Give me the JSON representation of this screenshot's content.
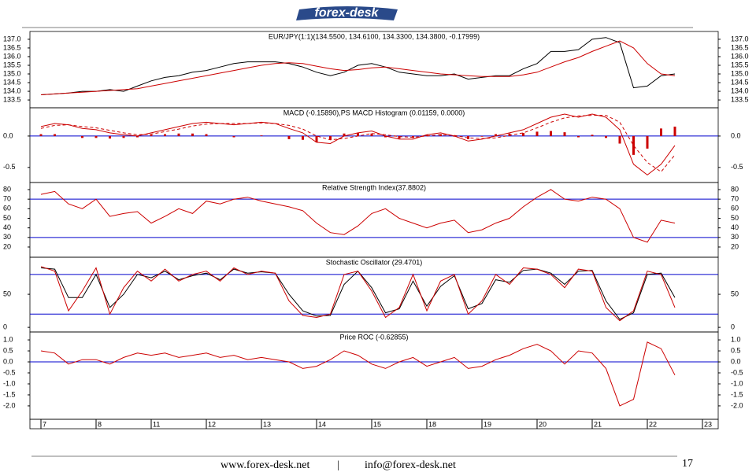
{
  "header": {
    "logo": "forex-desk"
  },
  "x_axis": {
    "categories": [
      "7",
      "8",
      "11",
      "12",
      "13",
      "14",
      "15",
      "18",
      "19",
      "20",
      "21",
      "22",
      "23"
    ]
  },
  "chart_data": [
    {
      "type": "line",
      "title": "EUR/JPY(1:1)(134.5500, 134.6100, 134.3300, 134.3800, -0.17999)",
      "ylim": [
        133.05,
        137.45
      ],
      "yticks": [
        133.5,
        {
          "value": 134,
          "label": "134.0"
        },
        134.5,
        {
          "value": 135,
          "label": "135.0"
        },
        135.5,
        {
          "value": 136,
          "label": "136.0"
        },
        136.5,
        {
          "value": 137,
          "label": "137.0"
        }
      ],
      "series": [
        {
          "color": "#000000",
          "values": [
            133.8,
            133.85,
            133.9,
            134.0,
            134.0,
            134.1,
            134.0,
            134.3,
            134.6,
            134.8,
            134.9,
            135.1,
            135.2,
            135.4,
            135.6,
            135.7,
            135.7,
            135.7,
            135.6,
            135.4,
            135.1,
            134.9,
            135.1,
            135.5,
            135.6,
            135.4,
            135.1,
            135.0,
            134.9,
            134.9,
            135.0,
            134.7,
            134.8,
            134.9,
            134.9,
            135.3,
            135.6,
            136.3,
            136.3,
            136.4,
            137.0,
            137.1,
            136.8,
            134.2,
            134.3,
            134.9,
            135.0
          ]
        },
        {
          "color": "#cc0000",
          "values": [
            133.8,
            133.85,
            133.9,
            133.95,
            134.0,
            134.05,
            134.1,
            134.15,
            134.3,
            134.45,
            134.6,
            134.75,
            134.9,
            135.05,
            135.2,
            135.35,
            135.5,
            135.6,
            135.65,
            135.6,
            135.45,
            135.3,
            135.2,
            135.25,
            135.35,
            135.4,
            135.3,
            135.2,
            135.1,
            135.0,
            134.95,
            134.9,
            134.85,
            134.85,
            134.85,
            134.95,
            135.1,
            135.4,
            135.7,
            135.95,
            136.3,
            136.6,
            136.9,
            136.5,
            135.6,
            135.0,
            134.9
          ]
        }
      ]
    },
    {
      "type": "line",
      "title": "MACD (-0.15890),PS MACD Histogram (0.01159, 0.0000)",
      "ylim": [
        -0.74,
        0.45
      ],
      "yticks": [
        -0.5,
        {
          "value": 0,
          "label": "0.0"
        }
      ],
      "hlines": [
        0
      ],
      "hline_color": "#0000cc",
      "series": [
        {
          "type": "bar",
          "color": "#cc0000",
          "values": [
            0.03,
            0.03,
            0.0,
            -0.03,
            -0.03,
            -0.04,
            -0.03,
            -0.02,
            0.02,
            0.03,
            0.04,
            0.04,
            0.03,
            0.0,
            -0.02,
            0.0,
            0.01,
            0.0,
            -0.05,
            -0.06,
            -0.1,
            -0.06,
            0.04,
            0.05,
            0.04,
            -0.02,
            -0.04,
            -0.03,
            0.02,
            0.03,
            -0.01,
            -0.05,
            -0.01,
            0.03,
            0.04,
            0.05,
            0.07,
            0.08,
            0.06,
            -0.02,
            0.02,
            -0.03,
            -0.12,
            -0.3,
            -0.2,
            0.12,
            0.15
          ]
        },
        {
          "color": "#cc0000",
          "values": [
            0.15,
            0.2,
            0.18,
            0.12,
            0.1,
            0.05,
            0.02,
            0.0,
            0.05,
            0.1,
            0.15,
            0.2,
            0.22,
            0.2,
            0.18,
            0.2,
            0.22,
            0.2,
            0.12,
            0.05,
            -0.1,
            -0.12,
            0.0,
            0.05,
            0.08,
            0.0,
            -0.05,
            -0.05,
            0.02,
            0.05,
            0.0,
            -0.08,
            -0.05,
            0.0,
            0.05,
            0.1,
            0.2,
            0.3,
            0.35,
            0.3,
            0.35,
            0.3,
            0.1,
            -0.45,
            -0.62,
            -0.45,
            -0.15
          ]
        },
        {
          "color": "#cc0000",
          "style": "dashed",
          "values": [
            0.12,
            0.17,
            0.18,
            0.15,
            0.13,
            0.09,
            0.05,
            0.02,
            0.03,
            0.07,
            0.11,
            0.16,
            0.19,
            0.2,
            0.2,
            0.2,
            0.21,
            0.2,
            0.17,
            0.11,
            0.0,
            -0.06,
            -0.04,
            0.0,
            0.04,
            0.02,
            -0.01,
            -0.02,
            0.0,
            0.02,
            0.01,
            -0.03,
            -0.04,
            -0.03,
            0.01,
            0.05,
            0.13,
            0.22,
            0.29,
            0.32,
            0.33,
            0.33,
            0.22,
            -0.15,
            -0.42,
            -0.57,
            -0.3
          ]
        }
      ]
    },
    {
      "type": "line",
      "title": "Relative Strength Index(37.8802)",
      "ylim": [
        9.3,
        87.4
      ],
      "yticks": [
        20,
        30,
        40,
        50,
        60,
        70,
        80
      ],
      "hlines": [
        70,
        30
      ],
      "hline_color": "#0000cc",
      "series": [
        {
          "color": "#cc0000",
          "values": [
            75,
            78,
            65,
            60,
            70,
            52,
            55,
            57,
            45,
            52,
            60,
            55,
            68,
            65,
            70,
            72,
            68,
            65,
            62,
            58,
            45,
            35,
            33,
            42,
            55,
            60,
            50,
            45,
            40,
            45,
            48,
            35,
            38,
            45,
            50,
            62,
            72,
            80,
            70,
            68,
            72,
            70,
            60,
            30,
            25,
            48,
            45
          ]
        }
      ]
    },
    {
      "type": "line",
      "title": "Stochastic Oscillator (29.4701)",
      "ylim": [
        -7,
        106
      ],
      "yticks": [
        0,
        50
      ],
      "hlines": [
        80,
        20
      ],
      "hline_color": "#0000cc",
      "series": [
        {
          "color": "#000000",
          "values": [
            90,
            88,
            45,
            45,
            80,
            30,
            50,
            80,
            75,
            85,
            72,
            78,
            82,
            72,
            88,
            82,
            84,
            82,
            50,
            25,
            17,
            18,
            65,
            85,
            60,
            22,
            28,
            70,
            32,
            62,
            78,
            28,
            36,
            72,
            68,
            86,
            88,
            82,
            65,
            85,
            86,
            40,
            12,
            22,
            80,
            82,
            45
          ]
        },
        {
          "color": "#cc0000",
          "values": [
            92,
            85,
            25,
            55,
            90,
            20,
            60,
            85,
            70,
            88,
            70,
            80,
            85,
            70,
            90,
            80,
            85,
            82,
            40,
            18,
            15,
            20,
            80,
            85,
            55,
            15,
            30,
            80,
            25,
            70,
            80,
            20,
            40,
            80,
            65,
            90,
            88,
            80,
            60,
            88,
            85,
            30,
            10,
            25,
            85,
            80,
            30
          ]
        }
      ]
    },
    {
      "type": "line",
      "title": "Price ROC (-0.62855)",
      "ylim": [
        -2.61,
        1.36
      ],
      "yticks": [
        {
          "value": -2,
          "label": "-2.0"
        },
        -1.5,
        {
          "value": -1,
          "label": "-1.0"
        },
        -0.5,
        {
          "value": 0,
          "label": "0.0"
        },
        0.5,
        {
          "value": 1,
          "label": "1.0"
        }
      ],
      "hlines": [
        0
      ],
      "hline_color": "#0000cc",
      "series": [
        {
          "color": "#cc0000",
          "values": [
            0.5,
            0.4,
            -0.1,
            0.1,
            0.1,
            -0.1,
            0.2,
            0.4,
            0.3,
            0.4,
            0.2,
            0.3,
            0.4,
            0.2,
            0.3,
            0.1,
            0.2,
            0.1,
            0.0,
            -0.3,
            -0.2,
            0.1,
            0.5,
            0.3,
            -0.1,
            -0.3,
            0.0,
            0.2,
            -0.2,
            0.0,
            0.2,
            -0.3,
            -0.2,
            0.1,
            0.3,
            0.6,
            0.8,
            0.5,
            -0.1,
            0.5,
            0.4,
            -0.3,
            -2.0,
            -1.7,
            0.9,
            0.6,
            -0.6
          ]
        }
      ]
    }
  ],
  "footer": {
    "site": "www.forex-desk.net",
    "separator": "|",
    "email": "info@forex-desk.net",
    "page": "17"
  }
}
